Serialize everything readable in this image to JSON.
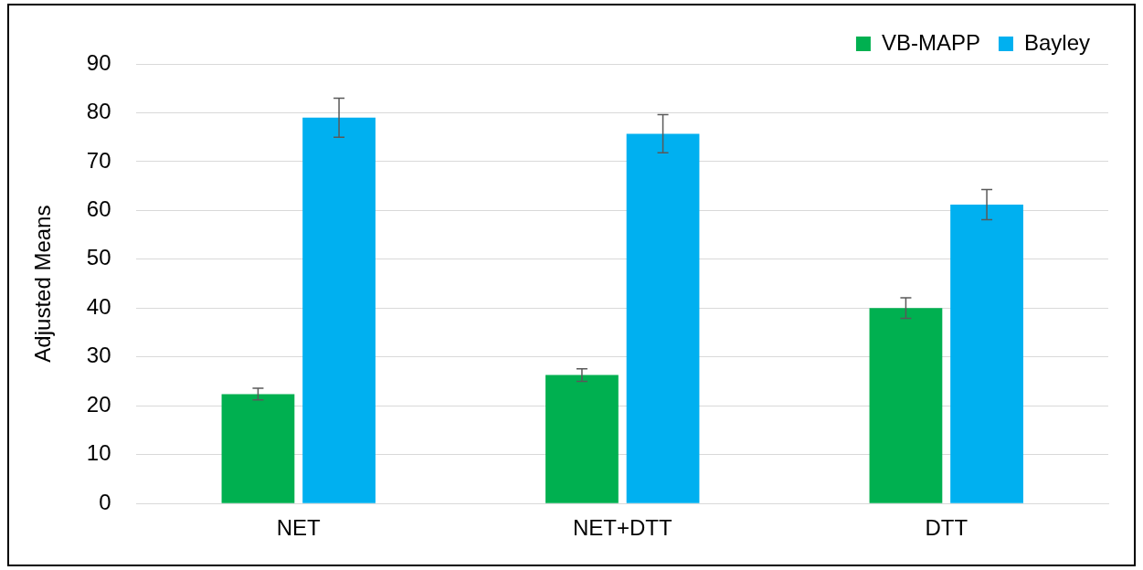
{
  "chart_data": {
    "type": "bar",
    "ylabel": "Adjusted Means",
    "categories": [
      "NET",
      "NET+DTT",
      "DTT"
    ],
    "series": [
      {
        "name": "VB-MAPP",
        "color": "#00b050",
        "values": [
          22.4,
          26.3,
          40.0
        ],
        "errors": [
          1.2,
          1.3,
          2.1
        ]
      },
      {
        "name": "Bayley",
        "color": "#00b0f0",
        "values": [
          79.0,
          75.7,
          61.2
        ],
        "errors": [
          4.0,
          3.9,
          3.1
        ]
      }
    ],
    "ylim": [
      0,
      90
    ],
    "yticks": [
      0,
      10,
      20,
      30,
      40,
      50,
      60,
      70,
      80,
      90
    ],
    "grid": "y",
    "legend": "top right"
  }
}
